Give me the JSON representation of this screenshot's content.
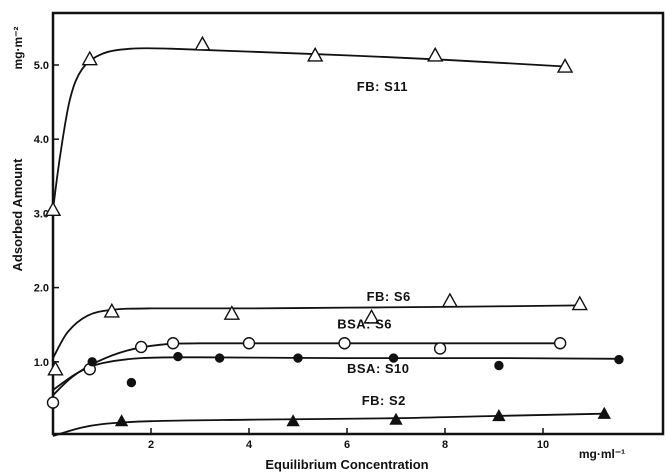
{
  "chart_data": {
    "type": "scatter",
    "title": "",
    "xlabel": "Equilibrium Concentration",
    "ylabel": "Adsorbed Amount",
    "x_unit": "mg·ml⁻¹",
    "y_unit": "mg·m⁻²",
    "xlim": [
      0,
      12.3
    ],
    "ylim": [
      0,
      5.5
    ],
    "x_ticks": [
      {
        "v": 2,
        "label": "2"
      },
      {
        "v": 4,
        "label": "4"
      },
      {
        "v": 6,
        "label": "6"
      },
      {
        "v": 8,
        "label": "8"
      },
      {
        "v": 10,
        "label": "10"
      }
    ],
    "y_ticks": [
      {
        "v": 1,
        "label": "1.0"
      },
      {
        "v": 2,
        "label": "2.0"
      },
      {
        "v": 3,
        "label": "3.0"
      },
      {
        "v": 4,
        "label": "4.0"
      },
      {
        "v": 5,
        "label": "5.0"
      }
    ],
    "grid": false,
    "series": [
      {
        "name": "FB: S11",
        "marker": "open-triangle",
        "label_at": [
          6.2,
          4.65
        ],
        "points": [
          [
            0.0,
            3.05
          ],
          [
            0.75,
            5.08
          ],
          [
            3.05,
            5.28
          ],
          [
            5.35,
            5.13
          ],
          [
            7.8,
            5.13
          ],
          [
            10.45,
            4.98
          ]
        ],
        "curve": [
          [
            0.0,
            3.05
          ],
          [
            0.15,
            3.8
          ],
          [
            0.35,
            4.55
          ],
          [
            0.6,
            4.95
          ],
          [
            1.0,
            5.15
          ],
          [
            1.6,
            5.22
          ],
          [
            2.4,
            5.22
          ],
          [
            4.0,
            5.18
          ],
          [
            6.0,
            5.13
          ],
          [
            8.0,
            5.07
          ],
          [
            10.45,
            4.98
          ]
        ]
      },
      {
        "name": "FB: S6",
        "marker": "open-triangle",
        "label_at": [
          6.4,
          1.82
        ],
        "points": [
          [
            0.05,
            0.9
          ],
          [
            1.2,
            1.68
          ],
          [
            3.65,
            1.65
          ],
          [
            6.5,
            1.6
          ],
          [
            8.1,
            1.82
          ],
          [
            10.75,
            1.78
          ]
        ],
        "curve": [
          [
            0.0,
            1.05
          ],
          [
            0.3,
            1.4
          ],
          [
            0.7,
            1.62
          ],
          [
            1.2,
            1.7
          ],
          [
            2.0,
            1.72
          ],
          [
            4.0,
            1.72
          ],
          [
            6.0,
            1.73
          ],
          [
            8.0,
            1.74
          ],
          [
            10.75,
            1.76
          ]
        ]
      },
      {
        "name": "BSA: S6",
        "marker": "open-circle",
        "label_at": [
          5.8,
          1.45
        ],
        "points": [
          [
            0.0,
            0.45
          ],
          [
            0.75,
            0.9
          ],
          [
            1.8,
            1.2
          ],
          [
            2.45,
            1.25
          ],
          [
            4.0,
            1.25
          ],
          [
            5.95,
            1.25
          ],
          [
            7.9,
            1.18
          ],
          [
            10.35,
            1.25
          ]
        ],
        "curve": [
          [
            0.0,
            0.55
          ],
          [
            0.4,
            0.8
          ],
          [
            0.9,
            1.0
          ],
          [
            1.5,
            1.15
          ],
          [
            2.2,
            1.23
          ],
          [
            3.0,
            1.25
          ],
          [
            6.0,
            1.25
          ],
          [
            10.35,
            1.25
          ]
        ]
      },
      {
        "name": "BSA: S10",
        "marker": "filled-circle",
        "label_at": [
          6.0,
          0.85
        ],
        "points": [
          [
            0.8,
            1.0
          ],
          [
            1.6,
            0.72
          ],
          [
            2.55,
            1.07
          ],
          [
            3.4,
            1.05
          ],
          [
            5.0,
            1.05
          ],
          [
            6.95,
            1.05
          ],
          [
            9.1,
            0.95
          ],
          [
            11.55,
            1.03
          ]
        ],
        "curve": [
          [
            0.0,
            0.62
          ],
          [
            0.5,
            0.85
          ],
          [
            1.0,
            0.98
          ],
          [
            1.8,
            1.05
          ],
          [
            3.0,
            1.06
          ],
          [
            6.0,
            1.05
          ],
          [
            9.0,
            1.05
          ],
          [
            11.55,
            1.04
          ]
        ]
      },
      {
        "name": "FB: S2",
        "marker": "filled-triangle",
        "label_at": [
          6.3,
          0.42
        ],
        "points": [
          [
            1.4,
            0.2
          ],
          [
            4.9,
            0.2
          ],
          [
            7.0,
            0.22
          ],
          [
            9.1,
            0.27
          ],
          [
            11.25,
            0.3
          ]
        ],
        "curve": [
          [
            0.0,
            0.0
          ],
          [
            0.5,
            0.1
          ],
          [
            1.0,
            0.16
          ],
          [
            2.0,
            0.2
          ],
          [
            4.0,
            0.22
          ],
          [
            7.0,
            0.24
          ],
          [
            9.0,
            0.27
          ],
          [
            11.25,
            0.3
          ]
        ]
      }
    ]
  }
}
